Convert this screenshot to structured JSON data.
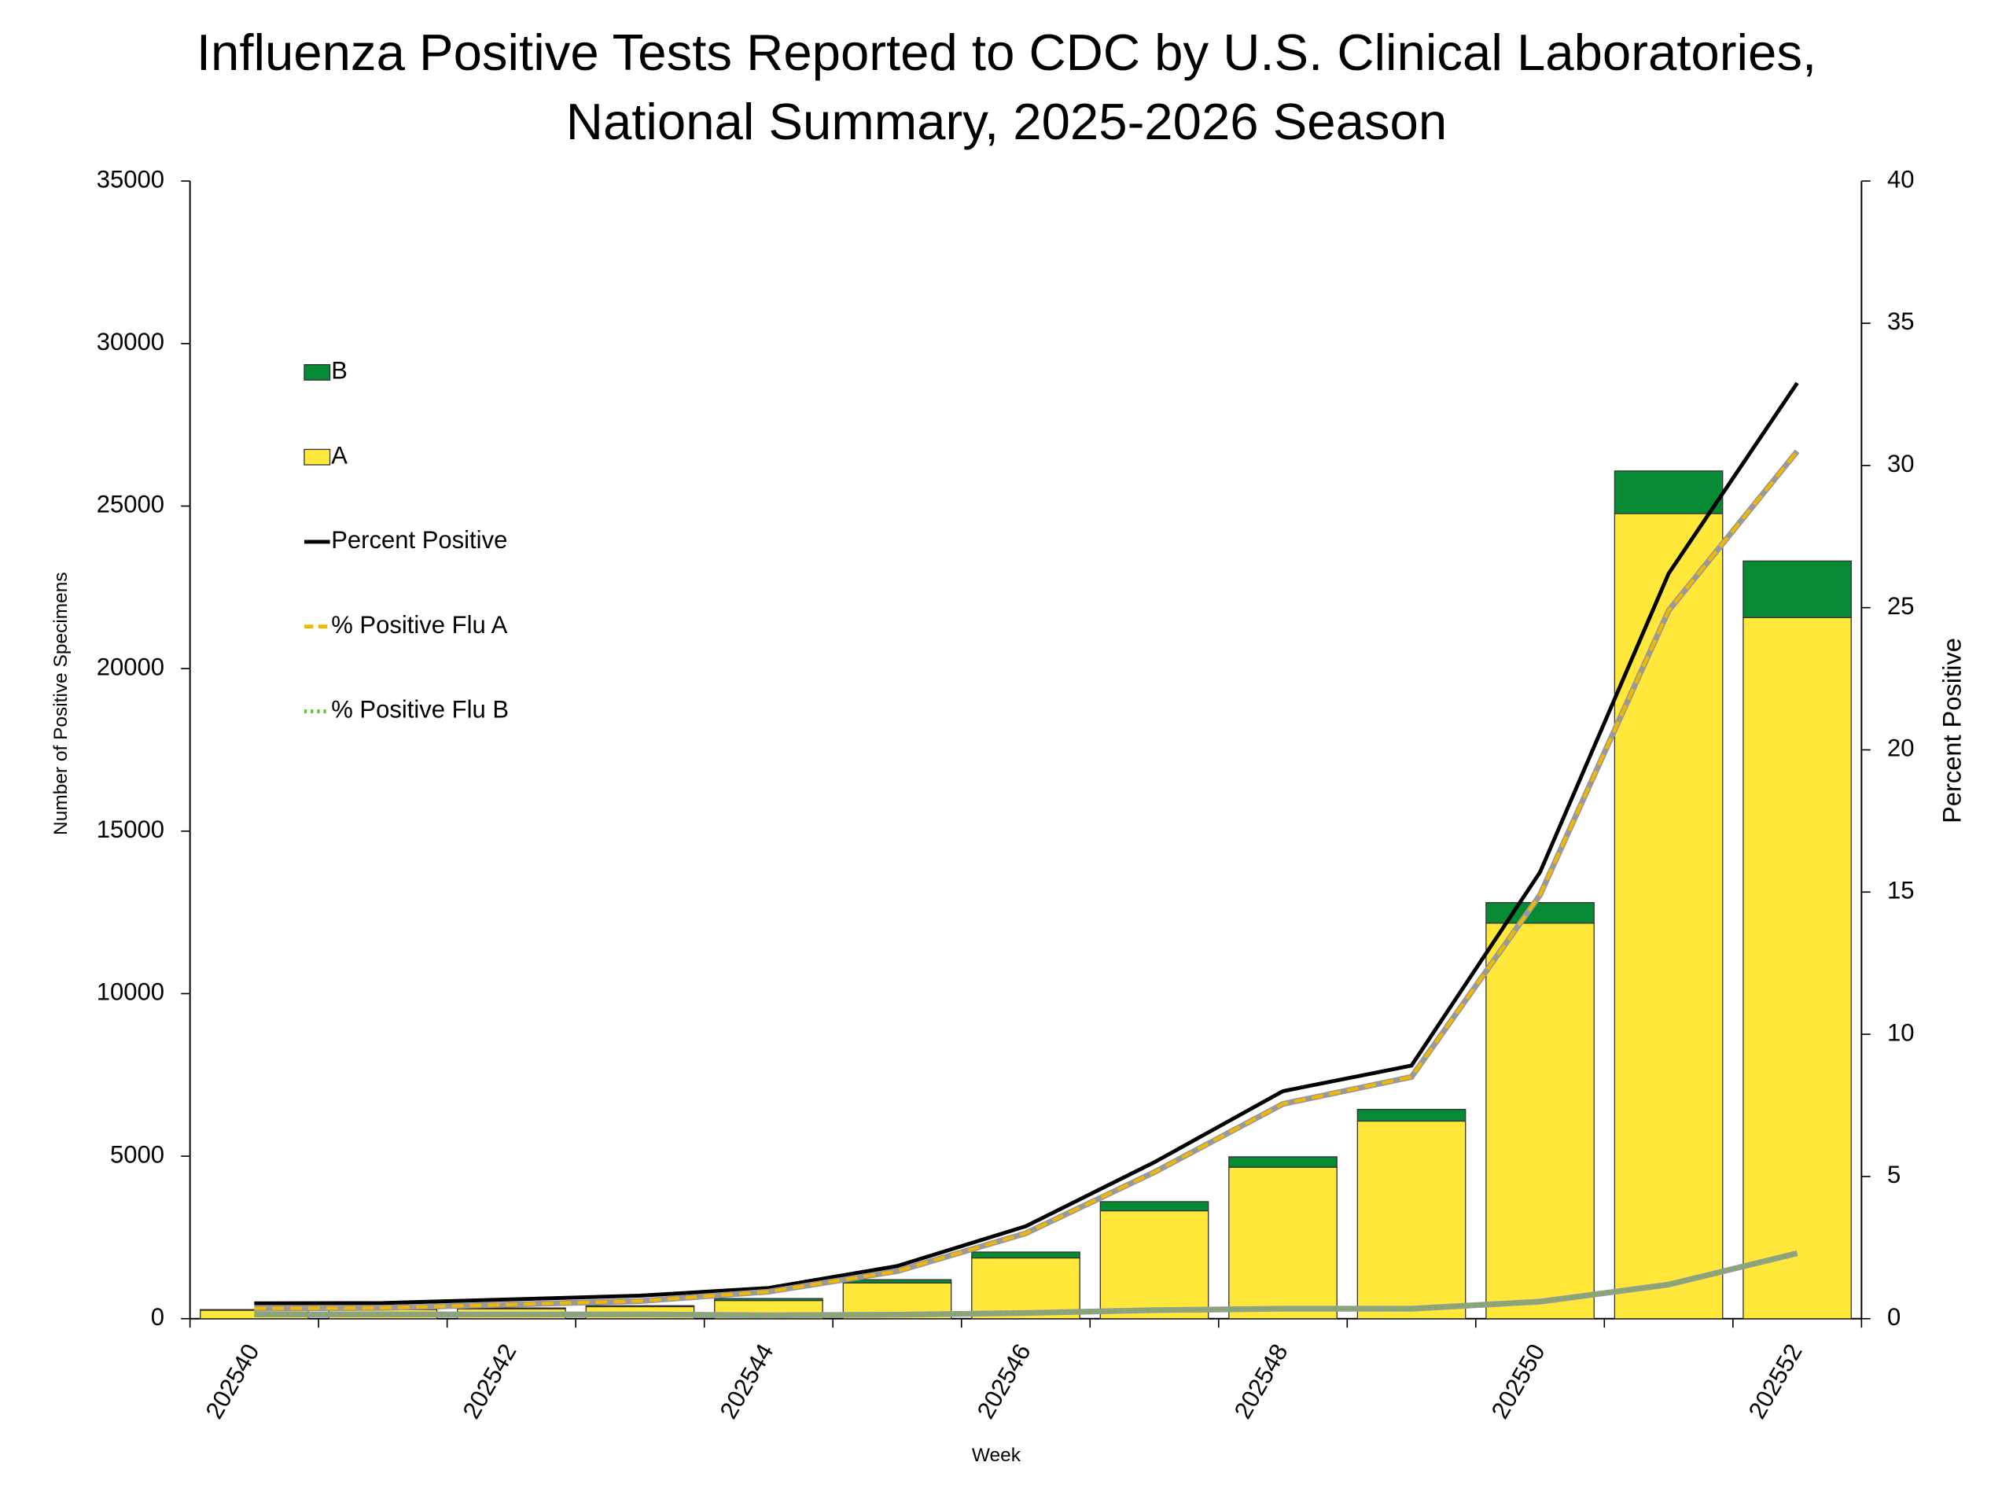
{
  "chart_data": {
    "type": "bar",
    "title": [
      "Influenza Positive Tests Reported to CDC by U.S. Clinical Laboratories,",
      "National Summary, 2025-2026 Season"
    ],
    "x_label": "Week",
    "y_label": "Number of Positive Specimens",
    "y2_label": "Percent Positive",
    "categories": [
      "202540",
      null,
      "202542",
      null,
      "202544",
      null,
      "202546",
      null,
      "202548",
      null,
      "202550",
      null,
      "202552"
    ],
    "stacked": true,
    "series": [
      {
        "name": "B",
        "type": "bar",
        "color": "#078a34",
        "values": [
          20,
          20,
          30,
          30,
          60,
          100,
          180,
          280,
          320,
          360,
          630,
          1310,
          1740
        ]
      },
      {
        "name": "A",
        "type": "bar",
        "color": "#ffe83a",
        "values": [
          260,
          280,
          300,
          370,
          560,
          1100,
          1870,
          3320,
          4660,
          6080,
          12170,
          24770,
          21570
        ]
      },
      {
        "name": "Percent Positive",
        "type": "line",
        "axis": "y2",
        "color": "#000000",
        "style": "solid",
        "values": [
          0.54,
          0.55,
          0.68,
          0.81,
          1.08,
          1.85,
          3.25,
          5.5,
          8.0,
          8.9,
          15.7,
          26.2,
          32.9
        ]
      },
      {
        "name": "% Positive Flu A",
        "type": "line",
        "axis": "y2",
        "color": "#f2b800",
        "style": "dashed",
        "values": [
          0.36,
          0.38,
          0.5,
          0.62,
          0.95,
          1.67,
          3.0,
          5.15,
          7.55,
          8.5,
          14.9,
          24.9,
          30.5
        ]
      },
      {
        "name": "% Positive Flu B",
        "type": "line",
        "axis": "y2",
        "color": "#66c22e",
        "style": "dotted",
        "values": [
          0.15,
          0.15,
          0.15,
          0.15,
          0.12,
          0.14,
          0.2,
          0.3,
          0.35,
          0.35,
          0.6,
          1.2,
          2.3
        ]
      }
    ],
    "ylim": [
      0,
      35000
    ],
    "yticks": [
      0,
      5000,
      10000,
      15000,
      20000,
      25000,
      30000,
      35000
    ],
    "y2lim": [
      0,
      40
    ],
    "y2ticks": [
      0,
      5,
      10,
      15,
      20,
      25,
      30,
      35,
      40
    ],
    "legend": "upper-left"
  }
}
